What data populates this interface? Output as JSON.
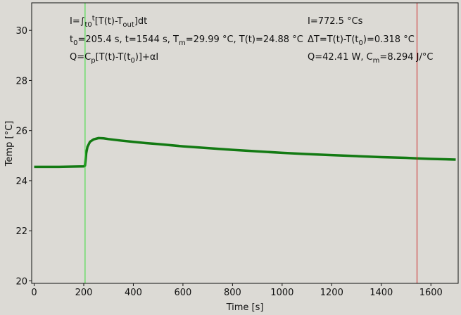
{
  "chart_data": {
    "type": "line",
    "xlabel": "Time [s]",
    "ylabel": "Temp [°C]",
    "xlim": [
      -10,
      1710
    ],
    "ylim": [
      19.9,
      31.1
    ],
    "xticks": [
      0,
      200,
      400,
      600,
      800,
      1000,
      1200,
      1400,
      1600
    ],
    "yticks": [
      20,
      22,
      24,
      26,
      28,
      30
    ],
    "series": [
      {
        "color": "#137a13",
        "x": [
          0,
          50,
          100,
          150,
          200,
          205,
          210,
          215,
          225,
          240,
          260,
          280,
          300,
          350,
          400,
          450,
          500,
          600,
          700,
          800,
          900,
          1000,
          1100,
          1200,
          1300,
          1400,
          1500,
          1544,
          1600,
          1700
        ],
        "values": [
          24.55,
          24.55,
          24.55,
          24.56,
          24.57,
          24.6,
          25.1,
          25.35,
          25.55,
          25.65,
          25.7,
          25.69,
          25.66,
          25.6,
          25.55,
          25.5,
          25.46,
          25.37,
          25.3,
          25.23,
          25.17,
          25.11,
          25.06,
          25.02,
          24.98,
          24.94,
          24.91,
          24.89,
          24.87,
          24.84
        ]
      }
    ],
    "markers": [
      {
        "x": 205.4,
        "color": "#33dd33"
      },
      {
        "x": 1544,
        "color": "#cc2222"
      }
    ],
    "annotations": [
      [
        {
          "text": "I=∫"
        },
        {
          "text": "t0",
          "shift": "sub"
        },
        {
          "text": "t",
          "shift": "sup"
        },
        {
          "text": "[T(t)-T"
        },
        {
          "text": "out",
          "shift": "sub"
        },
        {
          "text": "]dt"
        }
      ],
      [
        {
          "text": "t"
        },
        {
          "text": "0",
          "shift": "sub"
        },
        {
          "text": "=205.4 s,   t=1544 s,   T"
        },
        {
          "text": "m",
          "shift": "sub"
        },
        {
          "text": "=29.99 °C,  T(t)=24.88 °C"
        }
      ],
      [
        {
          "text": "Q=C"
        },
        {
          "text": "p",
          "shift": "sub"
        },
        {
          "text": "[T(t)-T(t"
        },
        {
          "text": "0",
          "shift": "sub"
        },
        {
          "text": ")]+αI"
        }
      ],
      [
        {
          "text": "I=772.5 °Cs"
        }
      ],
      [
        {
          "text": "ΔT=T(t)-T(t"
        },
        {
          "text": "0",
          "shift": "sub"
        },
        {
          "text": ")=0.318 °C"
        }
      ],
      [
        {
          "text": "Q=42.41 W,   C"
        },
        {
          "text": "m",
          "shift": "sub"
        },
        {
          "text": "=8.294 J/°C"
        }
      ]
    ],
    "annotation_color": "#1f1fd0",
    "grid": false
  }
}
